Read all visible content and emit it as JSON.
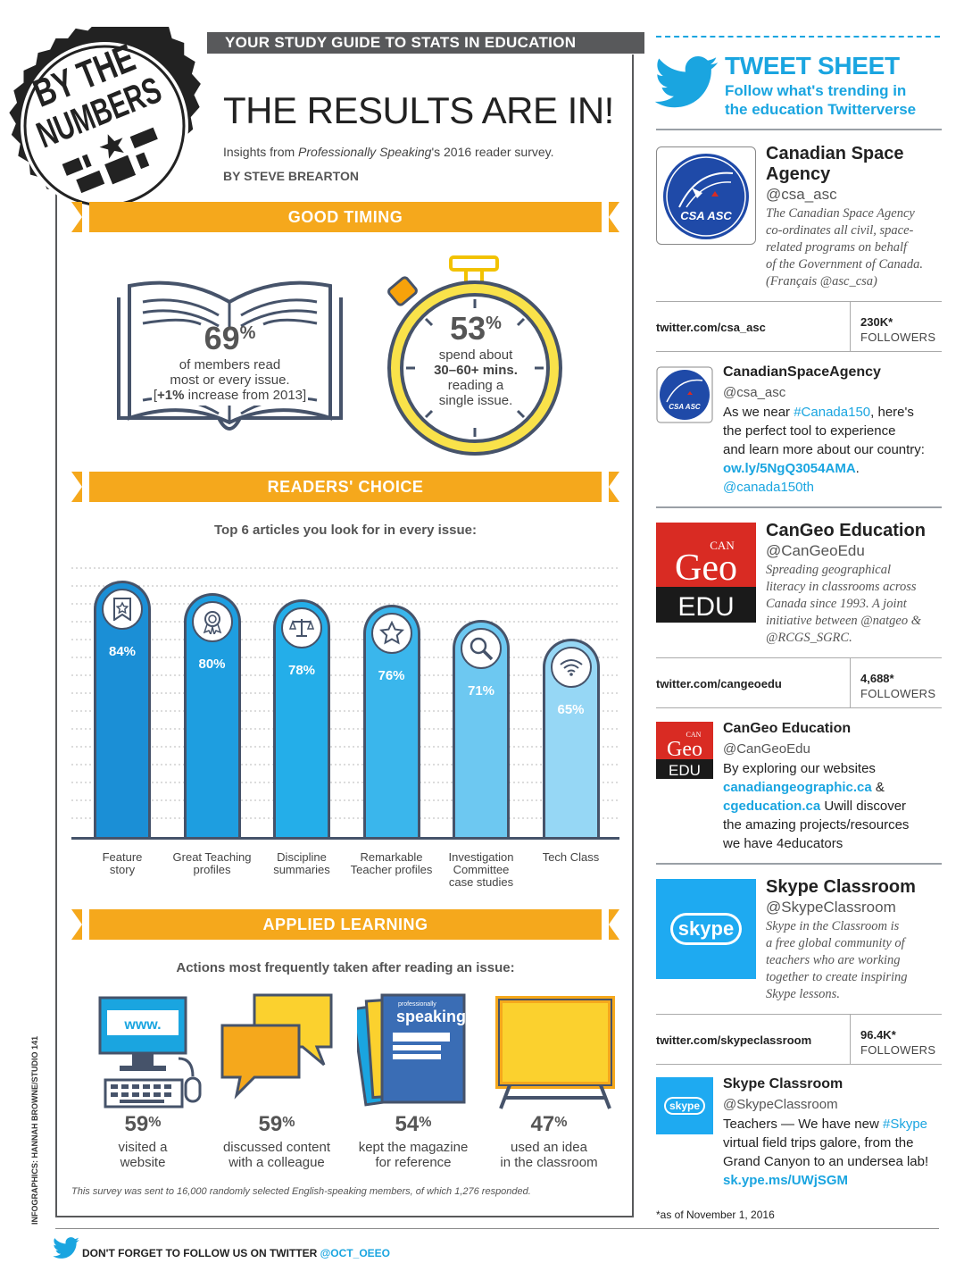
{
  "header": {
    "banner": "YOUR STUDY GUIDE TO STATS IN EDUCATION",
    "badge_line1": "BY THE",
    "badge_line2": "NUMBERS",
    "title": "THE RESULTS ARE IN!",
    "subtitle_pre": "Insights from ",
    "subtitle_em": "Professionally Speaking",
    "subtitle_post": "'s 2016 reader survey.",
    "byline": "BY STEVE BREARTON"
  },
  "good_timing": {
    "heading": "GOOD TIMING",
    "read": {
      "value": "69",
      "unit": "%",
      "l1": "of members read",
      "l2": "most or every issue.",
      "l3_pre": "[",
      "l3_bold": "+1%",
      "l3_post": " increase from 2013]"
    },
    "time": {
      "value": "53",
      "unit": "%",
      "l1": "spend about",
      "l2": "30–60+ mins.",
      "l3": "reading a",
      "l4": "single issue."
    }
  },
  "readers_choice": {
    "heading": "READERS' CHOICE",
    "intro": "Top 6 articles you look for in every issue:"
  },
  "chart_data": {
    "type": "bar",
    "title": "Top 6 articles you look for in every issue:",
    "categories": [
      "Feature story",
      "Great Teaching profiles",
      "Discipline summaries",
      "Remarkable Teacher profiles",
      "Investigation Committee case studies",
      "Tech Class"
    ],
    "labels": [
      [
        "Feature",
        "story"
      ],
      [
        "Great Teaching",
        "profiles"
      ],
      [
        "Discipline",
        "summaries"
      ],
      [
        "Remarkable",
        "Teacher profiles"
      ],
      [
        "Investigation",
        "Committee",
        "case studies"
      ],
      [
        "Tech Class"
      ]
    ],
    "values": [
      84,
      80,
      78,
      76,
      71,
      65
    ],
    "value_labels": [
      "84%",
      "80%",
      "78%",
      "76%",
      "71%",
      "65%"
    ],
    "icons": [
      "bookmark-star-icon",
      "ribbon-award-icon",
      "scales-icon",
      "star-icon",
      "magnifier-icon",
      "wifi-icon"
    ],
    "colors": [
      "#1b8fd6",
      "#1e9ee0",
      "#24aee9",
      "#3ab6ec",
      "#6dc8f1",
      "#96d7f5"
    ],
    "ylim": [
      0,
      100
    ]
  },
  "applied_learning": {
    "heading": "APPLIED LEARNING",
    "intro": "Actions most frequently taken after reading an issue:",
    "www": "www.",
    "mag_small": "professionally",
    "mag_big": "speaking",
    "actions": [
      {
        "value": "59",
        "unit": "%",
        "l1": "visited a",
        "l2": "website",
        "icon": "computer-icon"
      },
      {
        "value": "59",
        "unit": "%",
        "l1": "discussed content",
        "l2": "with a colleague",
        "icon": "speech-bubbles-icon"
      },
      {
        "value": "54",
        "unit": "%",
        "l1": "kept the magazine",
        "l2": "for reference",
        "icon": "magazines-icon"
      },
      {
        "value": "47",
        "unit": "%",
        "l1": "used an idea",
        "l2": "in the classroom",
        "icon": "chalkboard-icon"
      }
    ],
    "footnote": "This survey was sent to 16,000 randomly selected English-speaking members, of which 1,276 responded."
  },
  "credit": "INFOGRAPHICS: HANNAH BROWNE/STUDIO 141",
  "footer": {
    "text": "DON'T FORGET TO FOLLOW US ON TWITTER ",
    "handle": "@OCT_OEEO"
  },
  "tweet_sheet": {
    "title": "TWEET SHEET",
    "sub1": "Follow what's trending in",
    "sub2": "the education Twitterverse",
    "asof": "*as of November 1, 2016",
    "csa": {
      "logo_text": "CSA ASC",
      "name1": "Canadian Space",
      "name2": "Agency",
      "handle": "@csa_asc",
      "bio": [
        "The Canadian Space Agency",
        "co-ordinates all civil, space-",
        "related programs on behalf",
        "of the Government of Canada.",
        "(Français @asc_csa)"
      ],
      "url": "twitter.com/csa_asc",
      "followers": "230K*",
      "followers_label": "FOLLOWERS",
      "tweet_name": "CanadianSpaceAgency",
      "tweet_handle": "@csa_asc",
      "tweet": {
        "t1": "As we near ",
        "t1l": "#Canada150",
        "t1b": ", here's",
        "t2": "the perfect tool to experience",
        "t3": "and learn more about our country:",
        "t4l": "ow.ly/5NgQ3054AMA",
        "t4": ".",
        "t5l": "@canada150th"
      }
    },
    "cangeo": {
      "logo_can": "CAN",
      "logo_geo": "Geo",
      "logo_edu": "EDU",
      "name": "CanGeo Education",
      "handle": "@CanGeoEdu",
      "bio": [
        "Spreading geographical",
        "literacy in classrooms across",
        "Canada since 1993. A joint",
        "initiative between @natgeo &",
        "@RCGS_SGRC."
      ],
      "url": "twitter.com/cangeoedu",
      "followers": "4,688*",
      "followers_label": "FOLLOWERS",
      "tweet_name": "CanGeo Education",
      "tweet_handle": "@CanGeoEdu",
      "tweet": {
        "t1": "By exploring our websites",
        "t2l": "canadiangeographic.ca",
        "t2": " &",
        "t3l": "cgeducation.ca",
        "t3": " Uwill discover",
        "t4": "the amazing projects/resources",
        "t5": "we have 4educators"
      }
    },
    "skype": {
      "logo_text": "skype",
      "name": "Skype Classroom",
      "handle": "@SkypeClassroom",
      "bio": [
        "Skype in the Classroom is",
        "a free global community of",
        "teachers who are working",
        "together to create inspiring",
        "Skype lessons."
      ],
      "url": "twitter.com/skypeclassroom",
      "followers": "96.4K*",
      "followers_label": "FOLLOWERS",
      "tweet_name": "Skype Classroom",
      "tweet_handle": "@SkypeClassroom",
      "tweet": {
        "t1": "Teachers — We have new ",
        "t1l": "#Skype",
        "t2": "virtual field trips galore, from the",
        "t3": "Grand Canyon to an undersea lab!",
        "t4l": "sk.ype.ms/UWjSGM"
      }
    }
  },
  "colors": {
    "accent_orange": "#f5a81c",
    "twitter_blue": "#1aa5e0",
    "dark_slate": "#46536a",
    "cangeo_red": "#d92b23",
    "skype_blue": "#1eaaf1"
  }
}
